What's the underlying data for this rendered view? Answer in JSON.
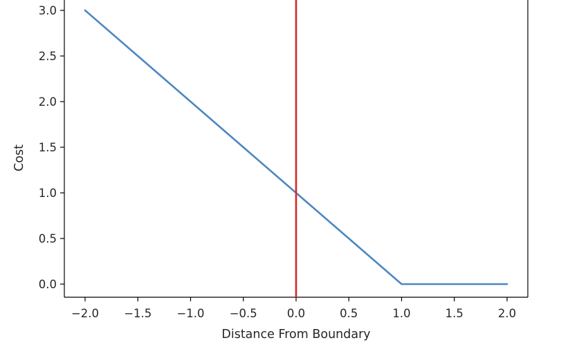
{
  "chart_data": {
    "type": "line",
    "title": "",
    "xlabel": "Distance From Boundary",
    "ylabel": "Cost",
    "xlim": [
      -2.2,
      2.2
    ],
    "ylim": [
      -0.15,
      3.0
    ],
    "grid": false,
    "x_ticks": [
      -2.0,
      -1.5,
      -1.0,
      -0.5,
      0.0,
      0.5,
      1.0,
      1.5,
      2.0
    ],
    "x_tick_labels": [
      "−2.0",
      "−1.5",
      "−1.0",
      "−0.5",
      "0.0",
      "0.5",
      "1.0",
      "1.5",
      "2.0"
    ],
    "y_ticks": [
      0.0,
      0.5,
      1.0,
      1.5,
      2.0,
      2.5,
      3.0
    ],
    "y_tick_labels": [
      "0.0",
      "0.5",
      "1.0",
      "1.5",
      "2.0",
      "2.5",
      "3.0"
    ],
    "series": [
      {
        "color": "#4c86c0",
        "x": [
          -2.0,
          -1.5,
          -1.0,
          -0.5,
          0.0,
          0.5,
          1.0,
          1.5,
          2.0
        ],
        "y": [
          3.0,
          2.5,
          2.0,
          1.5,
          1.0,
          0.5,
          0.0,
          0.0,
          0.0
        ]
      }
    ],
    "vertical_lines": [
      {
        "x": 0.0,
        "color": "#d62728"
      }
    ]
  }
}
